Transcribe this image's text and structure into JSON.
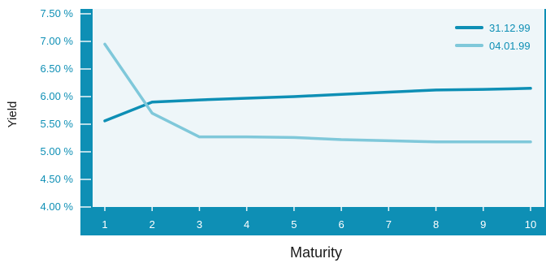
{
  "chart_data": {
    "type": "line",
    "title": "",
    "xlabel": "Maturity",
    "ylabel": "Yield",
    "x": [
      1,
      2,
      3,
      4,
      5,
      6,
      7,
      8,
      9,
      10
    ],
    "ylim": [
      4.0,
      7.5
    ],
    "y_ticks": [
      "4.00 %",
      "4.50 %",
      "5.00 %",
      "5.50 %",
      "6.00 %",
      "6.50 %",
      "7.00 %",
      "7.50 %"
    ],
    "y_tick_values": [
      4.0,
      4.5,
      5.0,
      5.5,
      6.0,
      6.5,
      7.0,
      7.5
    ],
    "grid": false,
    "legend_position": "top-right",
    "series": [
      {
        "name": "31.12.99",
        "color": "#0e8fb5",
        "values": [
          5.56,
          5.9,
          5.94,
          5.97,
          6.0,
          6.04,
          6.08,
          6.12,
          6.13,
          6.15
        ]
      },
      {
        "name": "04.01.99",
        "color": "#7fc8da",
        "values": [
          6.95,
          5.7,
          5.27,
          5.27,
          5.26,
          5.22,
          5.2,
          5.18,
          5.18,
          5.18
        ]
      }
    ]
  },
  "colors": {
    "frame": "#0e8fb5",
    "plot_background": "#eef6f9",
    "tick_label": "#0e8fb5",
    "x_tick_label": "#ffffff"
  }
}
